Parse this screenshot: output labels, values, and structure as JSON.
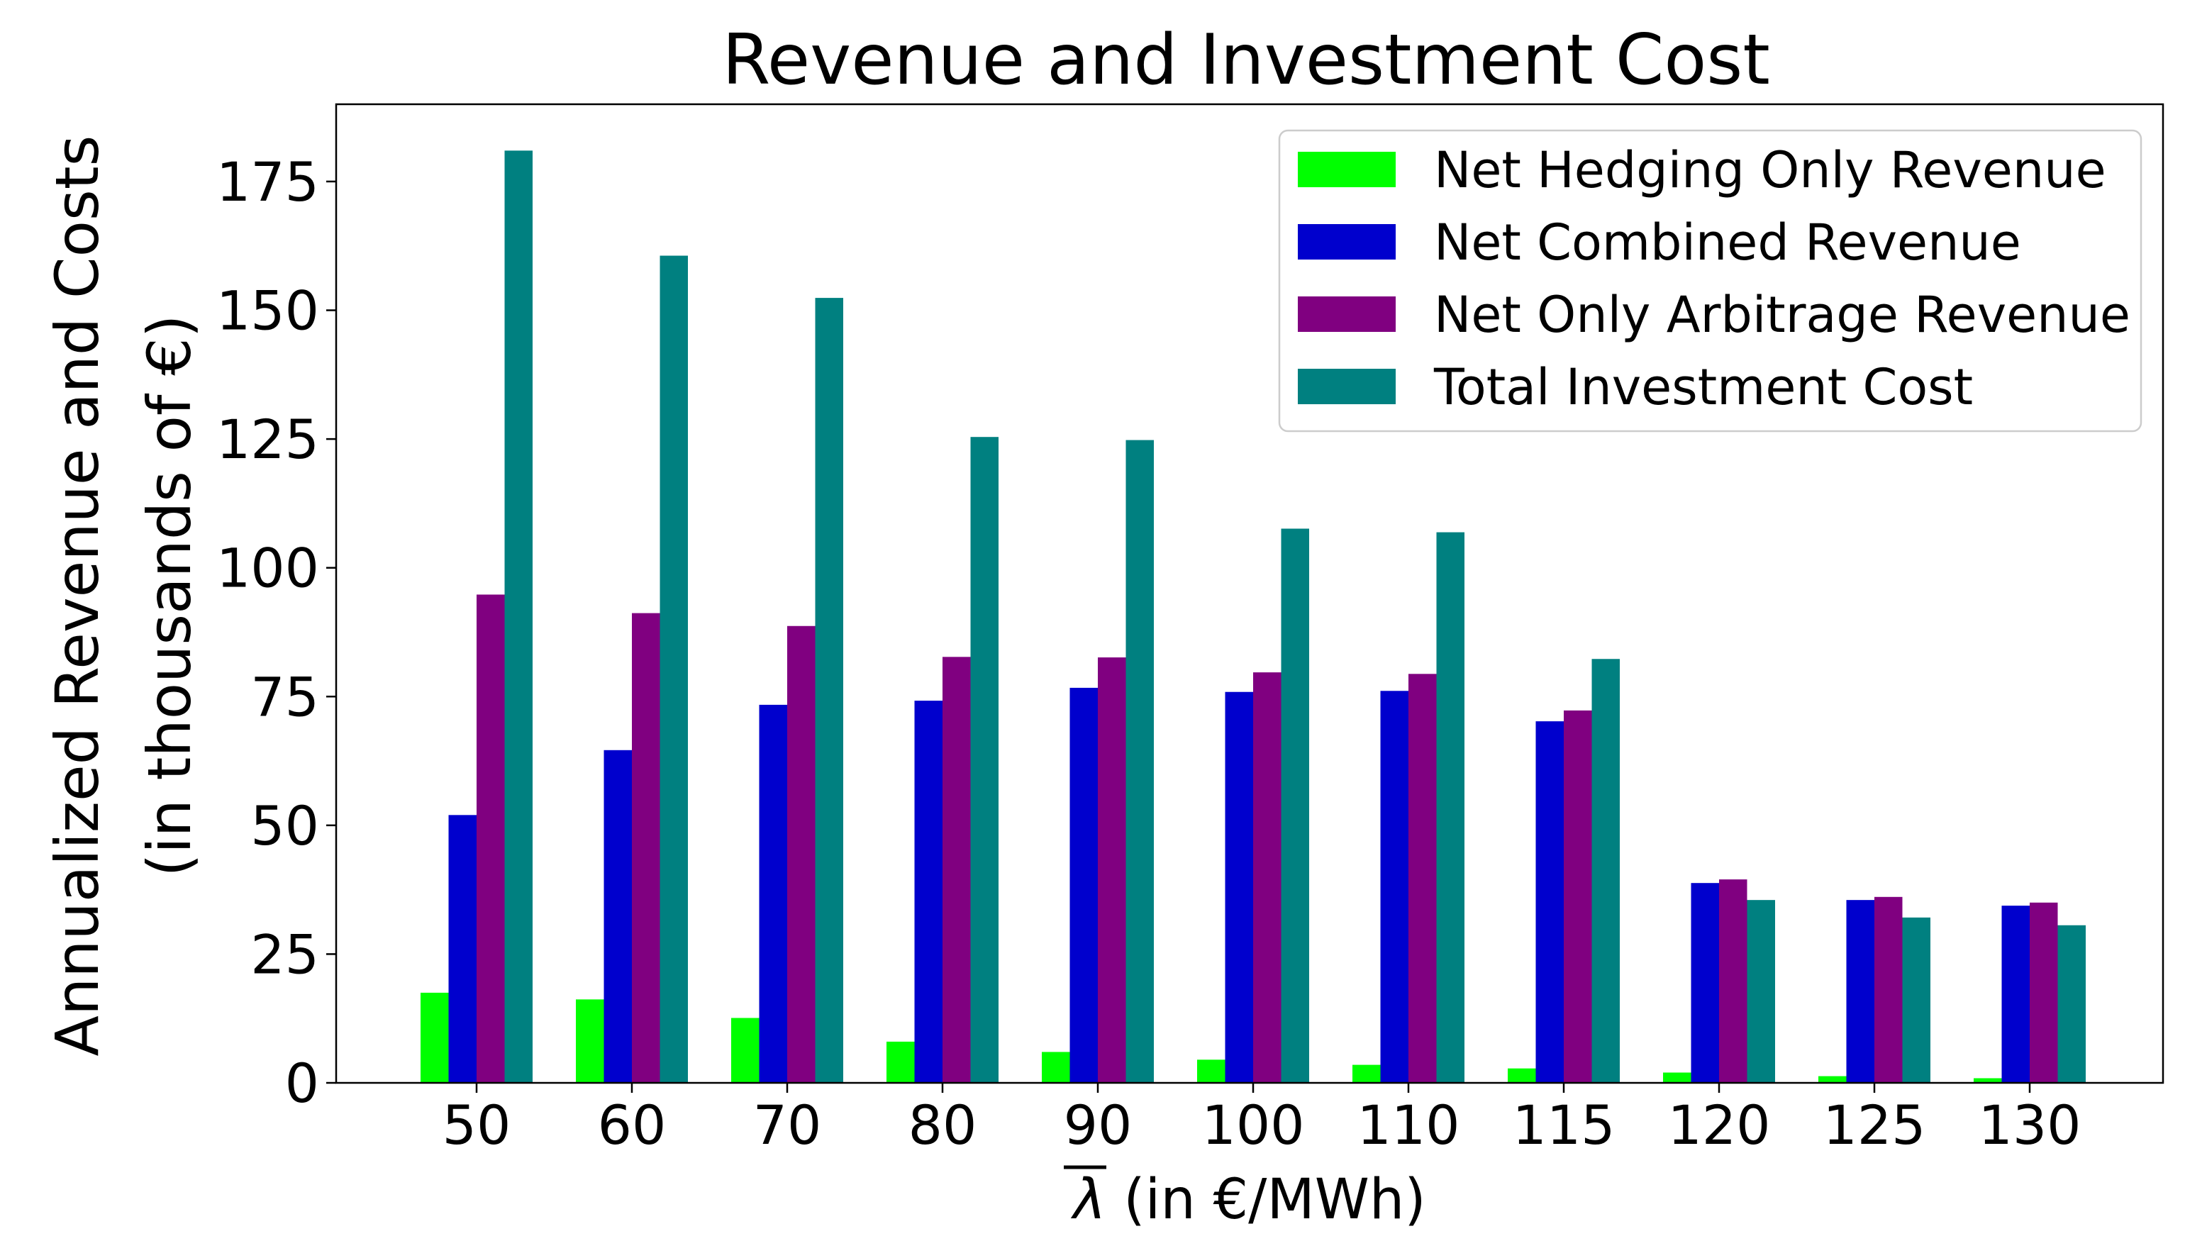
{
  "chart_data": {
    "type": "bar",
    "title": "Revenue and Investment Cost",
    "xlabel": "λ (in €/MWh)",
    "xlabel_symbol": "λ",
    "xlabel_rest": " (in €/MWh)",
    "ylabel_line1": "Annualized Revenue and Costs",
    "ylabel_line2": "(in thousands of €)",
    "ylim": [
      0,
      190
    ],
    "yticks": [
      0,
      25,
      50,
      75,
      100,
      125,
      150,
      175
    ],
    "grid": false,
    "legend_position": "top-right",
    "categories": [
      "50",
      "60",
      "70",
      "80",
      "90",
      "100",
      "110",
      "115",
      "120",
      "125",
      "130"
    ],
    "series": [
      {
        "name": "Net Hedging Only Revenue",
        "color": "#00ff00",
        "values": [
          17.5,
          16.2,
          12.6,
          8.0,
          6.0,
          4.5,
          3.5,
          2.8,
          2.0,
          1.3,
          0.9
        ]
      },
      {
        "name": "Net Combined Revenue",
        "color": "#0000cd",
        "values": [
          52.0,
          64.6,
          73.4,
          74.2,
          76.7,
          75.9,
          76.1,
          70.2,
          38.8,
          35.5,
          34.4
        ]
      },
      {
        "name": "Net Only Arbitrage Revenue",
        "color": "#800080",
        "values": [
          94.8,
          91.2,
          88.7,
          82.7,
          82.6,
          79.7,
          79.4,
          72.3,
          39.5,
          36.1,
          35.0
        ]
      },
      {
        "name": "Total Investment Cost",
        "color": "#008080",
        "values": [
          181.0,
          160.6,
          152.4,
          125.4,
          124.8,
          107.6,
          106.9,
          82.3,
          35.5,
          32.1,
          30.6
        ]
      }
    ]
  }
}
